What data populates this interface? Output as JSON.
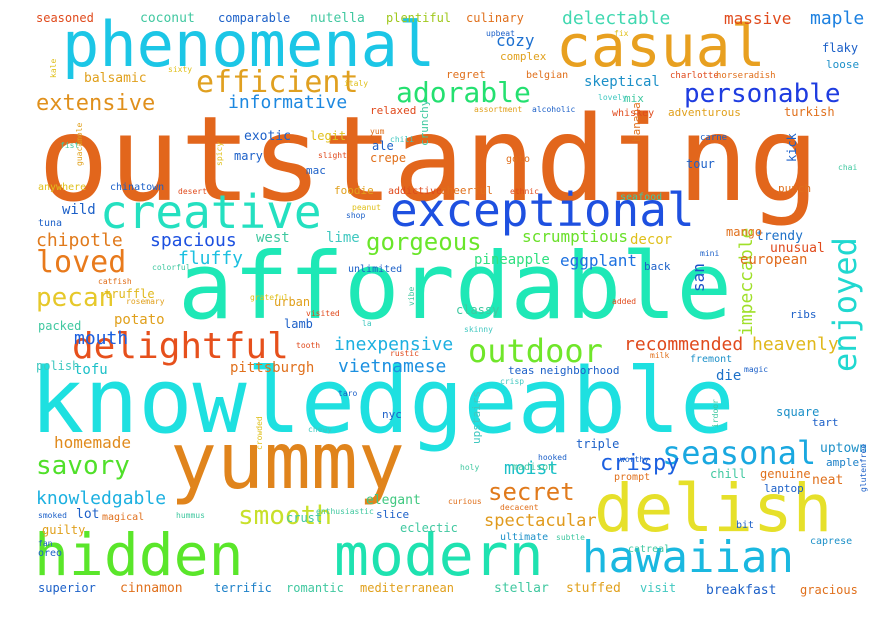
{
  "words": [
    {
      "text": "outstanding",
      "color": "#e2661c"
    },
    {
      "text": "affordable",
      "color": "#1ee8b6"
    },
    {
      "text": "knowledgeable",
      "color": "#1ee0e0"
    },
    {
      "text": "yummy",
      "color": "#e0841c"
    },
    {
      "text": "phenomenal",
      "color": "#1cc6e6"
    },
    {
      "text": "casual",
      "color": "#e8a020"
    },
    {
      "text": "delish",
      "color": "#e6e02a"
    },
    {
      "text": "hidden",
      "color": "#5ae62a"
    },
    {
      "text": "modern",
      "color": "#1ee2b0"
    },
    {
      "text": "hawaiian",
      "color": "#1ab8e0"
    },
    {
      "text": "exceptional",
      "color": "#1e50e0"
    },
    {
      "text": "creative",
      "color": "#24e0c0"
    },
    {
      "text": "enjoyed",
      "color": "#20d8d0"
    },
    {
      "text": "delightful",
      "color": "#e6501c"
    },
    {
      "text": "outdoor",
      "color": "#70e62a"
    },
    {
      "text": "seasonal",
      "color": "#1aa8e0"
    },
    {
      "text": "efficient",
      "color": "#e0a020"
    },
    {
      "text": "adorable",
      "color": "#24e070"
    },
    {
      "text": "personable",
      "color": "#1e3ce0"
    },
    {
      "text": "extensive",
      "color": "#e0901c"
    },
    {
      "text": "gorgeous",
      "color": "#6ae62a"
    },
    {
      "text": "loved",
      "color": "#e87a1c"
    },
    {
      "text": "pecan",
      "color": "#e6c82a"
    },
    {
      "text": "savory",
      "color": "#50e02a"
    },
    {
      "text": "secret",
      "color": "#e07a1c"
    },
    {
      "text": "smooth",
      "color": "#c8e02a"
    },
    {
      "text": "crispy",
      "color": "#1c60e0"
    },
    {
      "text": "moist",
      "color": "#1cc0c8"
    },
    {
      "text": "impeccable",
      "color": "#a0e02a"
    },
    {
      "text": "informative",
      "color": "#1c88e0"
    },
    {
      "text": "knowledgable",
      "color": "#1cb0e0"
    },
    {
      "text": "chipotle",
      "color": "#e07a1c"
    },
    {
      "text": "spacious",
      "color": "#1c50e0"
    },
    {
      "text": "fluffy",
      "color": "#1cc0e0"
    },
    {
      "text": "mouth",
      "color": "#1c60e0"
    },
    {
      "text": "homemade",
      "color": "#e08a1c"
    },
    {
      "text": "inexpensive",
      "color": "#1cb0e0"
    },
    {
      "text": "vietnamese",
      "color": "#1c90e0"
    },
    {
      "text": "spectacular",
      "color": "#e09a1c"
    },
    {
      "text": "recommended",
      "color": "#e04a1c"
    },
    {
      "text": "heavenly",
      "color": "#e0b81c"
    },
    {
      "text": "scrumptious",
      "color": "#6ae02a"
    },
    {
      "text": "pineapple",
      "color": "#30e080"
    },
    {
      "text": "eggplant",
      "color": "#1c70e0"
    },
    {
      "text": "delectable",
      "color": "#40d8b0"
    },
    {
      "text": "massive",
      "color": "#e04a1c"
    },
    {
      "text": "maple",
      "color": "#1c80e0"
    },
    {
      "text": "cozy",
      "color": "#1c70d0"
    },
    {
      "text": "skeptical",
      "color": "#1c90c8"
    },
    {
      "text": "exotic",
      "color": "#1c60c8"
    },
    {
      "text": "legit",
      "color": "#e0c01c"
    },
    {
      "text": "wild",
      "color": "#1c60c8"
    },
    {
      "text": "west",
      "color": "#40c8a0"
    },
    {
      "text": "lime",
      "color": "#40c8c0"
    },
    {
      "text": "decor",
      "color": "#e0c01c"
    },
    {
      "text": "san",
      "color": "#1c50c8"
    },
    {
      "text": "trendy",
      "color": "#1c70c8"
    },
    {
      "text": "unusual",
      "color": "#e04a1c"
    },
    {
      "text": "european",
      "color": "#e06a1c"
    },
    {
      "text": "tofu",
      "color": "#1cc0c8"
    },
    {
      "text": "potato",
      "color": "#e0a01c"
    },
    {
      "text": "lamb",
      "color": "#1c60c8"
    },
    {
      "text": "pittsburgh",
      "color": "#e0701c"
    },
    {
      "text": "urban",
      "color": "#e0a01c"
    },
    {
      "text": "truffle",
      "color": "#e0b81c"
    },
    {
      "text": "polish",
      "color": "#40c8c0"
    },
    {
      "text": "die",
      "color": "#1c70c8"
    },
    {
      "text": "square",
      "color": "#1c90c8"
    },
    {
      "text": "uptown",
      "color": "#1c90c8"
    },
    {
      "text": "ample",
      "color": "#1c80c8"
    },
    {
      "text": "chill",
      "color": "#40c8a0"
    },
    {
      "text": "genuine",
      "color": "#e0701c"
    },
    {
      "text": "neat",
      "color": "#e0701c"
    },
    {
      "text": "laptop",
      "color": "#1c60c8"
    },
    {
      "text": "tart",
      "color": "#1c60c8"
    },
    {
      "text": "triple",
      "color": "#1c60c8"
    },
    {
      "text": "elegant",
      "color": "#40c880"
    },
    {
      "text": "crust",
      "color": "#40c8a0"
    },
    {
      "text": "slice",
      "color": "#1c60c8"
    },
    {
      "text": "eclectic",
      "color": "#40c8a0"
    },
    {
      "text": "lot",
      "color": "#1c60c8"
    },
    {
      "text": "guilty",
      "color": "#e0a01c"
    },
    {
      "text": "magical",
      "color": "#e0701c"
    },
    {
      "text": "cinnamon",
      "color": "#e0701c"
    },
    {
      "text": "terrific",
      "color": "#1c80c8"
    },
    {
      "text": "romantic",
      "color": "#40c8a0"
    },
    {
      "text": "mediterranean",
      "color": "#e0a01c"
    },
    {
      "text": "stellar",
      "color": "#40c8a0"
    },
    {
      "text": "stuffed",
      "color": "#e0a01c"
    },
    {
      "text": "visit",
      "color": "#40c8c0"
    },
    {
      "text": "breakfast",
      "color": "#1c60c8"
    },
    {
      "text": "gracious",
      "color": "#e0701c"
    },
    {
      "text": "superior",
      "color": "#1c60c8"
    },
    {
      "text": "balsamic",
      "color": "#e0a01c"
    },
    {
      "text": "seasoned",
      "color": "#e04a1c"
    },
    {
      "text": "coconut",
      "color": "#40c8a0"
    },
    {
      "text": "comparable",
      "color": "#1c60c8"
    },
    {
      "text": "nutella",
      "color": "#40c8a0"
    },
    {
      "text": "plentiful",
      "color": "#a0c81c"
    },
    {
      "text": "culinary",
      "color": "#e0701c"
    },
    {
      "text": "flaky",
      "color": "#1c60c8"
    },
    {
      "text": "loose",
      "color": "#1c90c8"
    },
    {
      "text": "mix",
      "color": "#40c8a0"
    },
    {
      "text": "relaxed",
      "color": "#e04a1c"
    },
    {
      "text": "banana",
      "color": "#e0701c"
    },
    {
      "text": "tour",
      "color": "#1c60c8"
    },
    {
      "text": "kick",
      "color": "#1c60c8"
    },
    {
      "text": "mango",
      "color": "#e0701c"
    },
    {
      "text": "mary",
      "color": "#1c60c8"
    },
    {
      "text": "ale",
      "color": "#1c60c8"
    },
    {
      "text": "crepe",
      "color": "#e0701c"
    },
    {
      "text": "mac",
      "color": "#1c60c8"
    },
    {
      "text": "foodie",
      "color": "#e0a01c"
    },
    {
      "text": "addictive",
      "color": "#e04a1c"
    },
    {
      "text": "cheerful",
      "color": "#e0701c"
    },
    {
      "text": "upstairs",
      "color": "#40c8c0"
    },
    {
      "text": "classy",
      "color": "#40c8a0"
    },
    {
      "text": "packed",
      "color": "#40c8a0"
    },
    {
      "text": "chinatown",
      "color": "#1c60c8"
    },
    {
      "text": "anywhere",
      "color": "#e0c01c"
    },
    {
      "text": "seafood",
      "color": "#40c8a0"
    },
    {
      "text": "punch",
      "color": "#e0701c"
    },
    {
      "text": "crunchy",
      "color": "#40c8a0"
    },
    {
      "text": "goto",
      "color": "#e0701c"
    },
    {
      "text": "complex",
      "color": "#e0a01c"
    },
    {
      "text": "regret",
      "color": "#e0701c"
    },
    {
      "text": "belgian",
      "color": "#e0701c"
    },
    {
      "text": "whiskey",
      "color": "#e04a1c"
    },
    {
      "text": "adventurous",
      "color": "#e0a01c"
    },
    {
      "text": "turkish",
      "color": "#e0701c"
    },
    {
      "text": "unlimited",
      "color": "#1c60c8"
    },
    {
      "text": "back",
      "color": "#1c60c8"
    },
    {
      "text": "ribs",
      "color": "#1c60c8"
    },
    {
      "text": "nyc",
      "color": "#1c60c8"
    },
    {
      "text": "teas",
      "color": "#1c60c8"
    },
    {
      "text": "neighborhood",
      "color": "#1c60c8"
    },
    {
      "text": "fremont",
      "color": "#1c90c8"
    },
    {
      "text": "ultimate",
      "color": "#1c90c8"
    },
    {
      "text": "caprese",
      "color": "#1c90c8"
    },
    {
      "text": "catreal",
      "color": "#40c8a0"
    },
    {
      "text": "oreo",
      "color": "#1c60c8"
    },
    {
      "text": "madison",
      "color": "#40c8a0"
    },
    {
      "text": "prompt",
      "color": "#e0701c"
    },
    {
      "text": "chai",
      "color": "#40c8a0"
    },
    {
      "text": "italy",
      "color": "#e0c01c"
    },
    {
      "text": "upbeat",
      "color": "#1c60c8"
    },
    {
      "text": "kale",
      "color": "#e0c01c"
    },
    {
      "text": "tuna",
      "color": "#1c60c8"
    },
    {
      "text": "bit",
      "color": "#1c60c8"
    },
    {
      "text": "fan",
      "color": "#1c60c8"
    },
    {
      "text": "colorful",
      "color": "#40c8a0"
    },
    {
      "text": "catfish",
      "color": "#e0701c"
    },
    {
      "text": "skinny",
      "color": "#40c8c0"
    },
    {
      "text": "subtle",
      "color": "#40c8a0"
    },
    {
      "text": "curious",
      "color": "#e0701c"
    },
    {
      "text": "decacent",
      "color": "#e0701c"
    },
    {
      "text": "vibe",
      "color": "#40c8a0"
    },
    {
      "text": "rosemary",
      "color": "#e0a01c"
    },
    {
      "text": "chewy",
      "color": "#40c8c0"
    },
    {
      "text": "glutenfree",
      "color": "#1c60c8"
    },
    {
      "text": "lovely",
      "color": "#40c8c0"
    },
    {
      "text": "alcoholic",
      "color": "#1c60c8"
    },
    {
      "text": "assortment",
      "color": "#e0a01c"
    },
    {
      "text": "charlotte",
      "color": "#e04a1c"
    },
    {
      "text": "horseradish",
      "color": "#e0701c"
    },
    {
      "text": "carne",
      "color": "#1c60c8"
    },
    {
      "text": "slight",
      "color": "#e04a1c"
    },
    {
      "text": "yum",
      "color": "#e0701c"
    },
    {
      "text": "chili",
      "color": "#40c8c0"
    },
    {
      "text": "ethnic",
      "color": "#e04a1c"
    },
    {
      "text": "desert",
      "color": "#e04a1c"
    },
    {
      "text": "grateful",
      "color": "#e0c01c"
    },
    {
      "text": "visited",
      "color": "#e04a1c"
    },
    {
      "text": "tooth",
      "color": "#e04a1c"
    },
    {
      "text": "rustic",
      "color": "#e04a1c"
    },
    {
      "text": "crisp",
      "color": "#40c8c0"
    },
    {
      "text": "milk",
      "color": "#e0701c"
    },
    {
      "text": "magic",
      "color": "#1c60c8"
    },
    {
      "text": "hooked",
      "color": "#1c60c8"
    },
    {
      "text": "worthy",
      "color": "#1c60c8"
    },
    {
      "text": "holy",
      "color": "#40c8a0"
    },
    {
      "text": "enthusiastic",
      "color": "#40c8a0"
    },
    {
      "text": "smoked",
      "color": "#1c60c8"
    },
    {
      "text": "hummus",
      "color": "#40c8a0"
    },
    {
      "text": "crowded",
      "color": "#e0c01c"
    },
    {
      "text": "taro",
      "color": "#1c60c8"
    },
    {
      "text": "irdoor",
      "color": "#40c8a0"
    },
    {
      "text": "fist",
      "color": "#40c8a0"
    },
    {
      "text": "guacamole",
      "color": "#e0a01c"
    },
    {
      "text": "spicy",
      "color": "#e0c01c"
    },
    {
      "text": "mini",
      "color": "#1c60c8"
    },
    {
      "text": "added",
      "color": "#e04a1c"
    },
    {
      "text": "la",
      "color": "#40c8c0"
    },
    {
      "text": "shop",
      "color": "#1c60c8"
    },
    {
      "text": "peanut",
      "color": "#e0c01c"
    },
    {
      "text": "sixty",
      "color": "#e0c01c"
    },
    {
      "text": "fix",
      "color": "#e0c01c"
    }
  ]
}
